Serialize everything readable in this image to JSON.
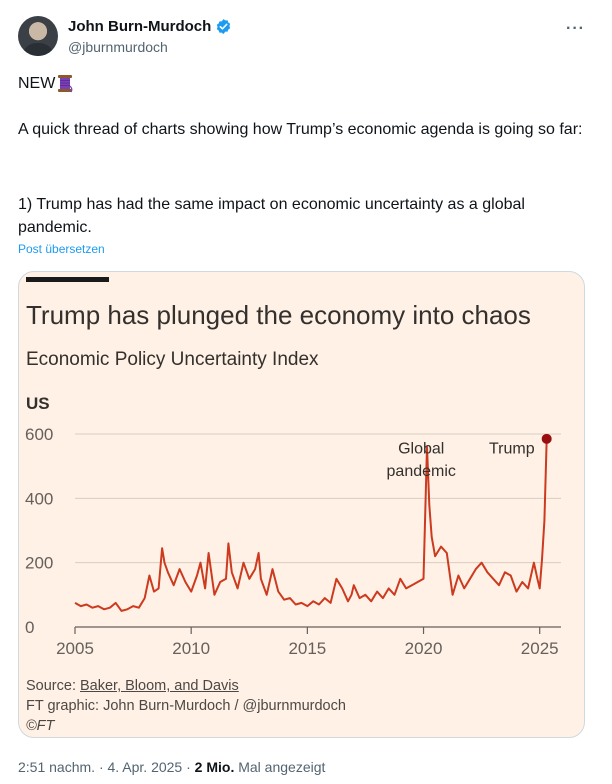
{
  "author": {
    "name": "John Burn-Murdoch",
    "handle": "@jburnmurdoch"
  },
  "menu": {
    "more_label": "···"
  },
  "tweet": {
    "line1": "NEW",
    "para2": "A quick thread of charts showing how Trump’s economic agenda is going so far:",
    "para3": "1) Trump has had the same impact on economic uncertainty as a global pandemic.",
    "translate_label": "Post übersetzen"
  },
  "chart_data": {
    "type": "line",
    "title": "Trump has plunged the economy into chaos",
    "subtitle": "Economic Policy Uncertainty Index",
    "region_label": "US",
    "ylim": [
      0,
      600
    ],
    "yticks": [
      "0",
      "200",
      "400",
      "600"
    ],
    "xlim": [
      2005,
      2025.4
    ],
    "xticks": [
      "2005",
      "2010",
      "2015",
      "2020",
      "2025"
    ],
    "grid": true,
    "color": "#cc3a1f",
    "annotations": [
      {
        "text": "Global",
        "x": 2019.9,
        "y": 540
      },
      {
        "text": "pandemic",
        "x": 2019.9,
        "y": 470
      },
      {
        "text": "Trump",
        "x": 2023.8,
        "y": 540
      }
    ],
    "series": [
      {
        "x": [
          2005.0,
          2005.25,
          2005.5,
          2005.75,
          2006.0,
          2006.25,
          2006.5,
          2006.75,
          2007.0,
          2007.25,
          2007.5,
          2007.75,
          2008.0,
          2008.2,
          2008.4,
          2008.6,
          2008.75,
          2008.85,
          2009.0,
          2009.25,
          2009.5,
          2009.75,
          2010.0,
          2010.25,
          2010.4,
          2010.6,
          2010.75,
          2011.0,
          2011.25,
          2011.5,
          2011.6,
          2011.75,
          2012.0,
          2012.25,
          2012.5,
          2012.75,
          2012.9,
          2013.0,
          2013.25,
          2013.5,
          2013.75,
          2014.0,
          2014.25,
          2014.5,
          2014.75,
          2015.0,
          2015.25,
          2015.5,
          2015.75,
          2016.0,
          2016.25,
          2016.5,
          2016.75,
          2016.9,
          2017.0,
          2017.25,
          2017.5,
          2017.75,
          2018.0,
          2018.25,
          2018.5,
          2018.75,
          2019.0,
          2019.25,
          2019.5,
          2019.75,
          2020.0,
          2020.15,
          2020.25,
          2020.35,
          2020.5,
          2020.75,
          2021.0,
          2021.25,
          2021.5,
          2021.75,
          2022.0,
          2022.25,
          2022.5,
          2022.75,
          2023.0,
          2023.25,
          2023.5,
          2023.75,
          2024.0,
          2024.25,
          2024.5,
          2024.75,
          2024.9,
          2025.0,
          2025.1,
          2025.2,
          2025.3
        ],
        "values": [
          75,
          65,
          70,
          60,
          65,
          55,
          60,
          75,
          50,
          55,
          65,
          60,
          90,
          160,
          110,
          120,
          245,
          200,
          170,
          130,
          180,
          140,
          110,
          160,
          200,
          120,
          230,
          100,
          140,
          150,
          260,
          170,
          120,
          200,
          150,
          180,
          230,
          150,
          100,
          180,
          110,
          85,
          90,
          70,
          75,
          65,
          80,
          70,
          90,
          75,
          150,
          120,
          80,
          100,
          130,
          90,
          100,
          80,
          110,
          90,
          120,
          100,
          150,
          120,
          130,
          140,
          150,
          560,
          380,
          280,
          220,
          250,
          230,
          100,
          160,
          120,
          150,
          180,
          200,
          170,
          150,
          130,
          170,
          160,
          110,
          140,
          120,
          200,
          150,
          120,
          210,
          330,
          585
        ]
      }
    ]
  },
  "source": {
    "prefix": "Source: ",
    "link": "Baker, Bloom, and Davis",
    "credit": "FT graphic: John Burn-Murdoch / @jburnmurdoch",
    "copyright": "©FT"
  },
  "meta": {
    "time": "2:51 nachm. · 4. Apr. 2025 · ",
    "views": "2 Mio.",
    "views_suffix": " Mal angezeigt"
  }
}
